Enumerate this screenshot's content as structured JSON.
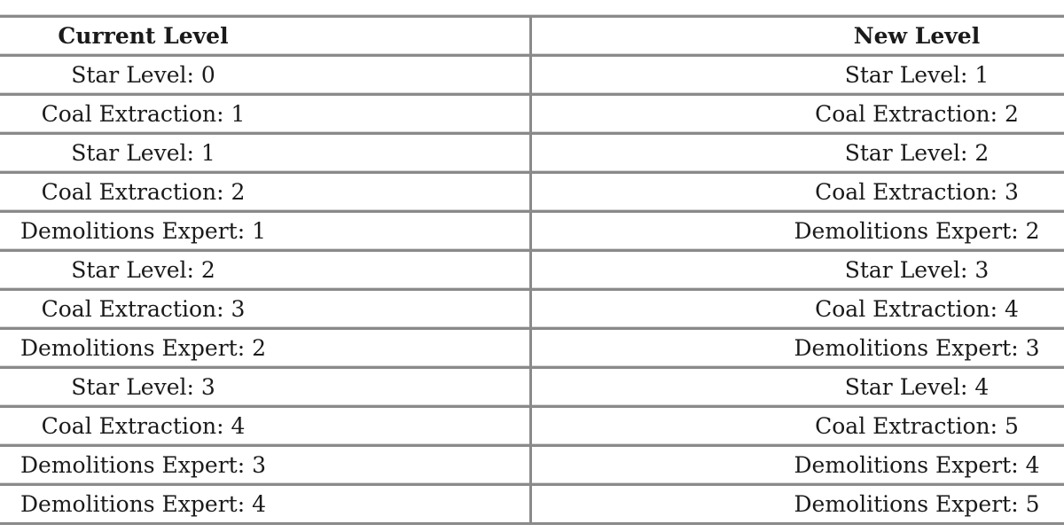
{
  "table": {
    "headers": [
      "Current Level",
      "New Level"
    ],
    "rows": [
      [
        "Star Level: 0",
        "Star Level: 1"
      ],
      [
        "Coal Extraction: 1",
        "Coal Extraction: 2"
      ],
      [
        "Star Level: 1",
        "Star Level: 2"
      ],
      [
        "Coal Extraction: 2",
        "Coal Extraction: 3"
      ],
      [
        "Demolitions Expert: 1",
        "Demolitions Expert: 2"
      ],
      [
        "Star Level: 2",
        "Star Level: 3"
      ],
      [
        "Coal Extraction: 3",
        "Coal Extraction: 4"
      ],
      [
        "Demolitions Expert: 2",
        "Demolitions Expert: 3"
      ],
      [
        "Star Level: 3",
        "Star Level: 4"
      ],
      [
        "Coal Extraction: 4",
        "Coal Extraction: 5"
      ],
      [
        "Demolitions Expert: 3",
        "Demolitions Expert: 4"
      ],
      [
        "Demolitions Expert: 4",
        "Demolitions Expert: 5"
      ]
    ]
  }
}
